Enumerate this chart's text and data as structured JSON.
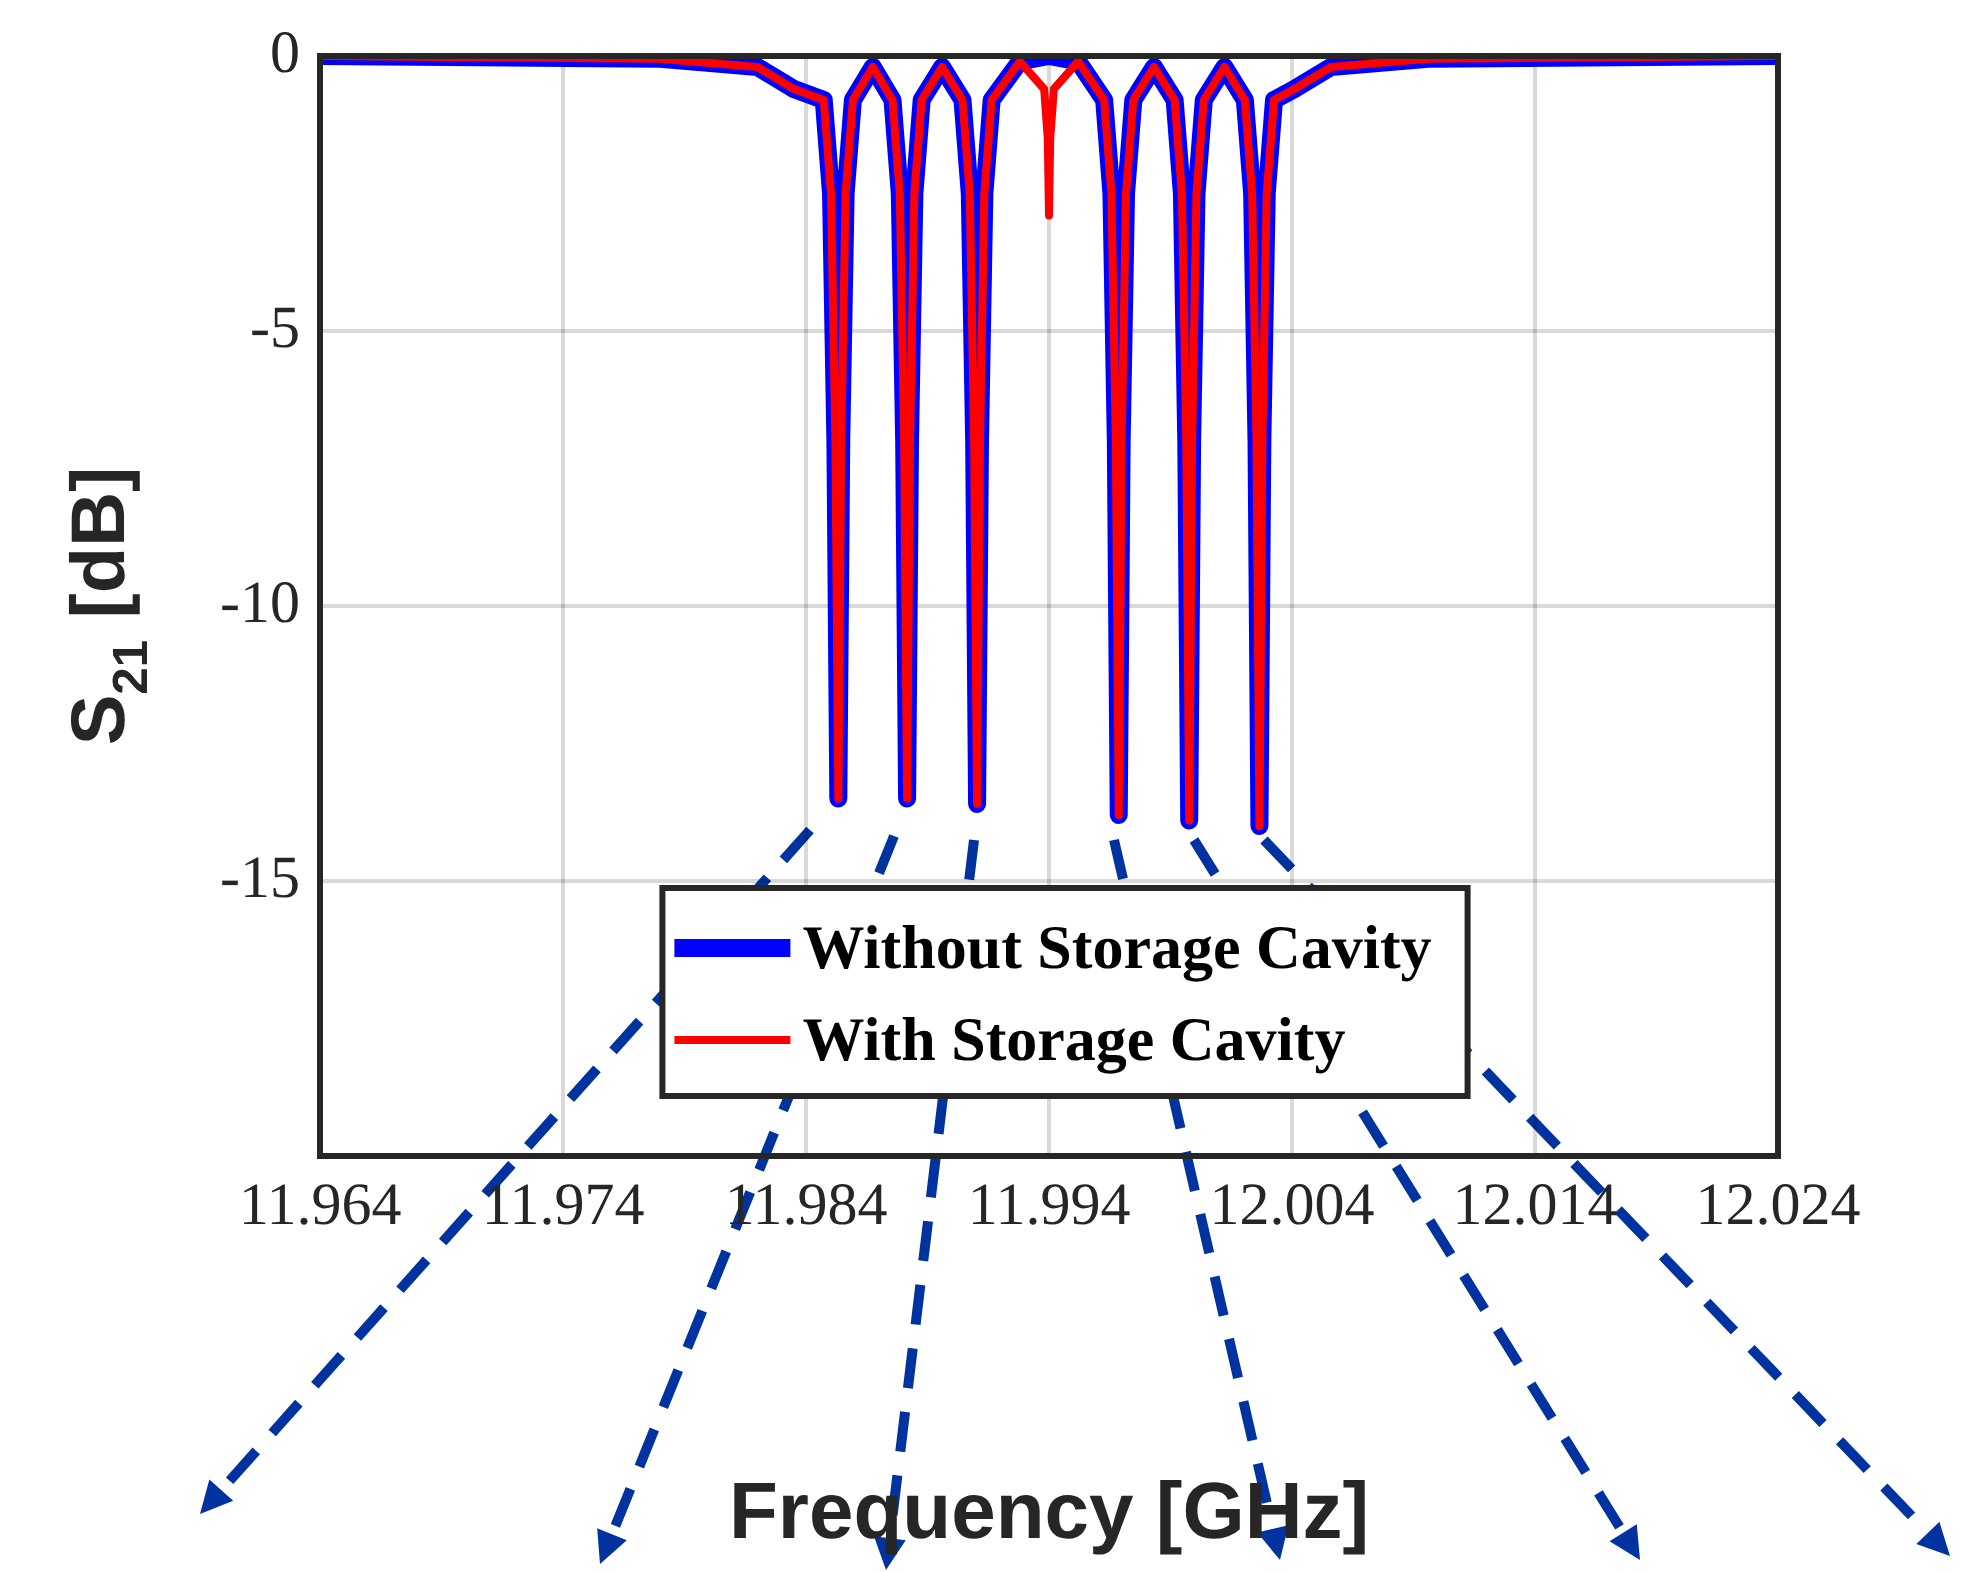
{
  "chart_data": {
    "type": "line",
    "xlabel": "Frequency [GHz]",
    "ylabel": "S$_{21}$ [dB]",
    "xlim": [
      11.964,
      12.024
    ],
    "xticks": [
      11.964,
      11.974,
      11.984,
      11.994,
      12.004,
      12.014,
      12.024
    ],
    "ylim": [
      -20,
      0
    ],
    "yticks": [
      -15,
      -10,
      -5,
      0
    ],
    "grid": true,
    "legend": "bottom",
    "marker": "none",
    "line_style": "solid",
    "series": [
      {
        "name": "Without Storage Cavity",
        "color": "#0000ff",
        "x": [
          11.964,
          11.978,
          11.982,
          11.9835,
          11.98473,
          11.98503,
          11.98521,
          11.98533,
          11.98545,
          11.98563,
          11.98593,
          11.98675,
          11.98756,
          11.98786,
          11.98804,
          11.98816,
          11.98828,
          11.98846,
          11.98876,
          11.9896,
          11.99044,
          11.99074,
          11.99092,
          11.99104,
          11.99116,
          11.99134,
          11.99164,
          11.9928,
          11.994,
          11.9952,
          11.99627,
          11.99657,
          11.99675,
          11.99687,
          11.99699,
          11.99717,
          11.99747,
          11.99832,
          11.99917,
          11.99947,
          11.99965,
          11.99977,
          11.99989,
          12.00007,
          12.00037,
          12.00122,
          12.00206,
          12.00236,
          12.00254,
          12.00266,
          12.00278,
          12.00296,
          12.00326,
          12.0041,
          12.0056,
          12.0096,
          12.024
        ],
        "values": [
          0,
          -0.05,
          -0.2,
          -0.6,
          -0.8,
          -2.5,
          -7,
          -13.5,
          -7,
          -2.5,
          -0.8,
          -0.2,
          -0.8,
          -2.5,
          -7,
          -13.5,
          -7,
          -2.5,
          -0.8,
          -0.2,
          -0.8,
          -2.5,
          -7,
          -13.6,
          -7,
          -2.5,
          -0.8,
          -0.1,
          0,
          -0.1,
          -0.8,
          -2.5,
          -7,
          -13.8,
          -7,
          -2.5,
          -0.8,
          -0.2,
          -0.8,
          -2.5,
          -7,
          -13.9,
          -7,
          -2.5,
          -0.8,
          -0.2,
          -0.8,
          -2.5,
          -7,
          -14,
          -7,
          -2.5,
          -0.8,
          -0.6,
          -0.2,
          -0.05,
          0
        ]
      },
      {
        "name": "With Storage Cavity",
        "color": "#ff0000",
        "x": [
          11.964,
          11.978,
          11.982,
          11.9835,
          11.98473,
          11.98503,
          11.98521,
          11.98533,
          11.98545,
          11.98563,
          11.98593,
          11.98675,
          11.98756,
          11.98786,
          11.98804,
          11.98816,
          11.98828,
          11.98846,
          11.98876,
          11.9896,
          11.99044,
          11.99074,
          11.99092,
          11.99104,
          11.99116,
          11.99134,
          11.99164,
          11.9928,
          11.9938,
          11.99395,
          11.994,
          11.99405,
          11.9942,
          11.9952,
          11.99627,
          11.99657,
          11.99675,
          11.99687,
          11.99699,
          11.99717,
          11.99747,
          11.99832,
          11.99917,
          11.99947,
          11.99965,
          11.99977,
          11.99989,
          12.00007,
          12.00037,
          12.00122,
          12.00206,
          12.00236,
          12.00254,
          12.00266,
          12.00278,
          12.00296,
          12.00326,
          12.0041,
          12.0056,
          12.0096,
          12.024
        ],
        "values": [
          0,
          -0.05,
          -0.2,
          -0.6,
          -0.8,
          -2.5,
          -7,
          -13.5,
          -7,
          -2.5,
          -0.8,
          -0.2,
          -0.8,
          -2.5,
          -7,
          -13.5,
          -7,
          -2.5,
          -0.8,
          -0.2,
          -0.8,
          -2.5,
          -7,
          -13.6,
          -7,
          -2.5,
          -0.8,
          -0.1,
          -0.6,
          -1.5,
          -2.9,
          -1.5,
          -0.6,
          -0.1,
          -0.8,
          -2.5,
          -7,
          -13.8,
          -7,
          -2.5,
          -0.8,
          -0.2,
          -0.8,
          -2.5,
          -7,
          -13.9,
          -7,
          -2.5,
          -0.8,
          -0.2,
          -0.8,
          -2.5,
          -7,
          -14,
          -7,
          -2.5,
          -0.8,
          -0.6,
          -0.2,
          -0.05,
          0
        ]
      }
    ]
  }
}
